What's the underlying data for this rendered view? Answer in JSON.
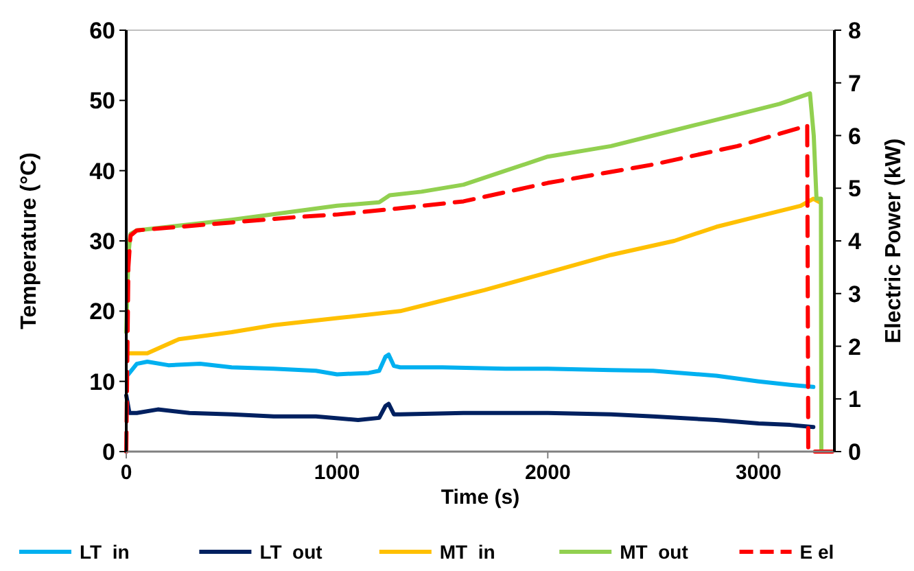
{
  "chart_data": {
    "type": "line",
    "xlabel": "Time (s)",
    "ylabel": "Temperature (°C)",
    "y2label": "Electric Power (kW)",
    "xlim": [
      0,
      3360
    ],
    "xticks": [
      0,
      1000,
      2000,
      3000
    ],
    "ylim": [
      0,
      60
    ],
    "yticks": [
      0,
      10,
      20,
      30,
      40,
      50,
      60
    ],
    "y2lim": [
      0,
      8
    ],
    "y2ticks": [
      0,
      1,
      2,
      3,
      4,
      5,
      6,
      7,
      8
    ],
    "grid": false,
    "legend": "bottom",
    "line_style": "solid",
    "marker": "none",
    "series": [
      {
        "name": "LT  in",
        "color": "#00b0f0",
        "x": [
          10,
          50,
          100,
          200,
          350,
          500,
          700,
          900,
          1000,
          1150,
          1200,
          1230,
          1245,
          1270,
          1300,
          1500,
          1800,
          2000,
          2300,
          2500,
          2800,
          3000,
          3150,
          3260
        ],
        "values": [
          11,
          12.5,
          12.8,
          12.3,
          12.5,
          12,
          11.8,
          11.5,
          11,
          11.2,
          11.5,
          13.5,
          13.8,
          12.2,
          12,
          12,
          11.8,
          11.8,
          11.6,
          11.5,
          10.8,
          10,
          9.5,
          9.2
        ]
      },
      {
        "name": "LT  out",
        "color": "#002060",
        "x": [
          0,
          15,
          50,
          150,
          300,
          500,
          700,
          900,
          1100,
          1200,
          1230,
          1245,
          1270,
          1300,
          1600,
          2000,
          2300,
          2500,
          2800,
          3000,
          3150,
          3260
        ],
        "values": [
          8,
          5.5,
          5.5,
          6,
          5.5,
          5.3,
          5,
          5,
          4.5,
          4.8,
          6.5,
          6.8,
          5.3,
          5.3,
          5.5,
          5.5,
          5.3,
          5,
          4.5,
          4,
          3.8,
          3.5
        ]
      },
      {
        "name": "MT  in",
        "color": "#ffc000",
        "x": [
          15,
          100,
          250,
          500,
          700,
          1000,
          1300,
          1500,
          1700,
          2000,
          2300,
          2600,
          2800,
          3000,
          3200,
          3260,
          3290
        ],
        "values": [
          14,
          14,
          16,
          17,
          18,
          19,
          20,
          21.5,
          23,
          25.5,
          28,
          30,
          32,
          33.5,
          35,
          36,
          35.5
        ]
      },
      {
        "name": "MT  out",
        "color": "#92d050",
        "x": [
          0,
          10,
          20,
          50,
          200,
          500,
          800,
          1000,
          1200,
          1250,
          1400,
          1600,
          1800,
          2000,
          2300,
          2500,
          2700,
          2900,
          3100,
          3244,
          3262,
          3275,
          3296,
          3298,
          3330
        ],
        "values": [
          17,
          28,
          31,
          31.5,
          32,
          33,
          34.2,
          35,
          35.5,
          36.5,
          37,
          38,
          40,
          42,
          43.5,
          45,
          46.5,
          48,
          49.5,
          51,
          45,
          36,
          36,
          0,
          0
        ]
      },
      {
        "name": "E el",
        "color": "#ff0000",
        "axis": "y2",
        "line_style": "dashed",
        "x": [
          0,
          10,
          20,
          50,
          200,
          500,
          800,
          1000,
          1250,
          1600,
          2000,
          2500,
          2900,
          3200,
          3231,
          3236,
          3350
        ],
        "values": [
          0,
          3.5,
          4.1,
          4.2,
          4.25,
          4.35,
          4.45,
          4.5,
          4.6,
          4.75,
          5.1,
          5.45,
          5.8,
          6.15,
          6.2,
          0,
          0
        ]
      }
    ]
  }
}
